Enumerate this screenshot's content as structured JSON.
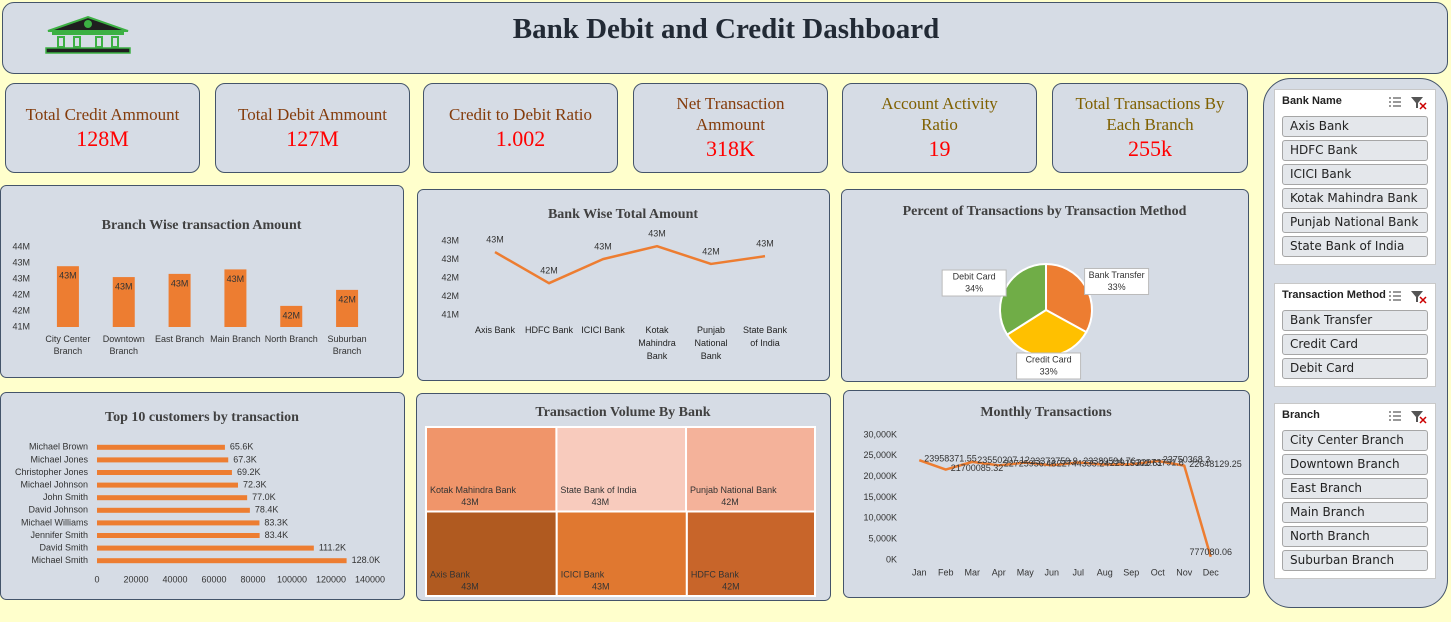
{
  "header": {
    "title": "Bank Debit and Credit Dashboard"
  },
  "kpis": [
    {
      "label": "Total Credit Ammount",
      "value": "128M"
    },
    {
      "label": "Total Debit Ammount",
      "value": "127M"
    },
    {
      "label": "Credit to Debit Ratio",
      "value": "1.002"
    },
    {
      "label": "Net Transaction Ammount",
      "value": "318K"
    },
    {
      "label": "Account Activity Ratio",
      "value": "19"
    },
    {
      "label": "Total Transactions By Each Branch",
      "value": "255k"
    }
  ],
  "chart_data": [
    {
      "type": "bar",
      "title": "Branch Wise transaction Amount",
      "categories": [
        "City Center Branch",
        "Downtown Branch",
        "East Branch",
        "Main Branch",
        "North Branch",
        "Suburban Branch"
      ],
      "values": [
        42.9,
        42.56,
        42.66,
        42.8,
        41.66,
        42.16
      ],
      "value_labels": [
        "43M",
        "43M",
        "43M",
        "43M",
        "42M",
        "42M"
      ],
      "color": "#ED7D31",
      "ylim": [
        41,
        43.5
      ],
      "yticks": [
        {
          "value": 41,
          "label": "41M"
        },
        {
          "value": 41.5,
          "label": "42M"
        },
        {
          "value": 42,
          "label": "42M"
        },
        {
          "value": 42.5,
          "label": "43M"
        },
        {
          "value": 43,
          "label": "43M"
        },
        {
          "value": 43.5,
          "label": "44M"
        }
      ]
    },
    {
      "type": "line",
      "title": "Bank Wise Total Amount",
      "categories": [
        "Axis Bank",
        "HDFC Bank",
        "ICICI Bank",
        "Kotak Mahindra Bank",
        "Punjab National Bank",
        "State Bank of India"
      ],
      "values": [
        42.7,
        41.86,
        42.51,
        42.86,
        42.38,
        42.59
      ],
      "value_labels": [
        "43M",
        "42M",
        "43M",
        "43M",
        "42M",
        "43M"
      ],
      "color": "#ED7D31",
      "ylim": [
        41,
        43
      ],
      "yticks": [
        {
          "value": 41,
          "label": "41M"
        },
        {
          "value": 41.5,
          "label": "42M"
        },
        {
          "value": 42,
          "label": "42M"
        },
        {
          "value": 42.5,
          "label": "43M"
        },
        {
          "value": 43,
          "label": "43M"
        }
      ]
    },
    {
      "type": "pie",
      "title": "Percent of Transactions by Transaction Method",
      "categories": [
        "Bank Transfer",
        "Credit Card",
        "Debit Card"
      ],
      "values": [
        33,
        33,
        34
      ],
      "value_labels": [
        "33%",
        "33%",
        "34%"
      ],
      "colors": [
        "#ED7D31",
        "#FFC000",
        "#70AD47"
      ]
    },
    {
      "type": "bar",
      "horizontal": true,
      "title": "Top 10 customers by transaction",
      "categories": [
        "Michael Brown",
        "Michael Jones",
        "Christopher Jones",
        "Michael Johnson",
        "John Smith",
        "David Johnson",
        "Michael Williams",
        "Jennifer Smith",
        "David Smith",
        "Michael Smith"
      ],
      "values": [
        65600,
        67300,
        69200,
        72300,
        77000,
        78400,
        83300,
        83400,
        111200,
        128000
      ],
      "value_labels": [
        "65.6K",
        "67.3K",
        "69.2K",
        "72.3K",
        "77.0K",
        "78.4K",
        "83.3K",
        "83.4K",
        "111.2K",
        "128.0K"
      ],
      "color": "#ED7D31",
      "xlim": [
        0,
        140000
      ],
      "xticks": [
        0,
        20000,
        40000,
        60000,
        80000,
        100000,
        120000,
        140000
      ]
    },
    {
      "type": "treemap",
      "title": "Transaction Volume By Bank",
      "categories": [
        "Kotak Mahindra Bank",
        "State Bank of India",
        "Punjab National Bank",
        "Axis Bank",
        "ICICI Bank",
        "HDFC Bank"
      ],
      "values": [
        42.86,
        42.59,
        42.38,
        42.7,
        42.51,
        41.86
      ],
      "value_labels": [
        "43M",
        "43M",
        "42M",
        "43M",
        "43M",
        "42M"
      ],
      "colors": [
        "#F0956A",
        "#F8CBBD",
        "#F4B29A",
        "#B05A20",
        "#E07830",
        "#C8652A"
      ]
    },
    {
      "type": "line",
      "title": "Monthly Transactions",
      "categories": [
        "Jan",
        "Feb",
        "Mar",
        "Apr",
        "May",
        "Jun",
        "Jul",
        "Aug",
        "Sep",
        "Oct",
        "Nov",
        "Dec"
      ],
      "values": [
        23958371.55,
        21700085.32,
        23550207.12,
        22725956.48,
        23373759.9,
        22744335.24,
        23389594.76,
        22915302.61,
        22973791.8,
        23750368.3,
        22648129.25,
        777080.06
      ],
      "color": "#ED7D31",
      "ylim": [
        0,
        30000000
      ],
      "yticks": [
        {
          "value": 0,
          "label": "0K"
        },
        {
          "value": 5000000,
          "label": "5,000K"
        },
        {
          "value": 10000000,
          "label": "10,000K"
        },
        {
          "value": 15000000,
          "label": "15,000K"
        },
        {
          "value": 20000000,
          "label": "20,000K"
        },
        {
          "value": 25000000,
          "label": "25,000K"
        },
        {
          "value": 30000000,
          "label": "30,000K"
        }
      ]
    }
  ],
  "slicers": [
    {
      "title": "Bank Name",
      "items": [
        "Axis Bank",
        "HDFC Bank",
        "ICICI Bank",
        "Kotak Mahindra Bank",
        "Punjab National Bank",
        "State Bank of India"
      ]
    },
    {
      "title": "Transaction Method",
      "items": [
        "Bank Transfer",
        "Credit Card",
        "Debit Card"
      ]
    },
    {
      "title": "Branch",
      "items": [
        "City Center Branch",
        "Downtown Branch",
        "East Branch",
        "Main Branch",
        "North Branch",
        "Suburban Branch"
      ]
    }
  ]
}
